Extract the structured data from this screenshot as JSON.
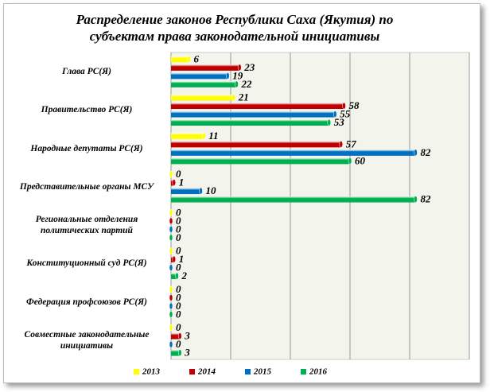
{
  "chart_data": {
    "type": "hbar",
    "title": "Распределение законов Республики Саха (Якутия) по субъектам права законодательной инициативы",
    "categories": [
      "Глава РС(Я)",
      "Правительство РС(Я)",
      "Народные депутаты  РС(Я)",
      "Представительные органы МСУ",
      "Региональные отделения политических партий",
      "Конституционный суд РС(Я)",
      "Федерация профсоюзов  РС(Я)",
      "Совместные законодательные инициативы"
    ],
    "series": [
      {
        "name": "2013",
        "color": "#ffff00",
        "values": [
          6,
          21,
          11,
          0,
          0,
          0,
          0,
          0
        ]
      },
      {
        "name": "2014",
        "color": "#c00000",
        "values": [
          23,
          58,
          57,
          1,
          0,
          1,
          0,
          3
        ]
      },
      {
        "name": "2015",
        "color": "#0070c0",
        "values": [
          19,
          55,
          82,
          10,
          0,
          0,
          0,
          0
        ]
      },
      {
        "name": "2016",
        "color": "#00b050",
        "values": [
          22,
          53,
          60,
          82,
          0,
          2,
          0,
          3
        ]
      }
    ],
    "xlim": [
      0,
      100
    ],
    "xticks": [
      0,
      20,
      40,
      60,
      80,
      100
    ],
    "grid": true,
    "legend": "bottom"
  }
}
